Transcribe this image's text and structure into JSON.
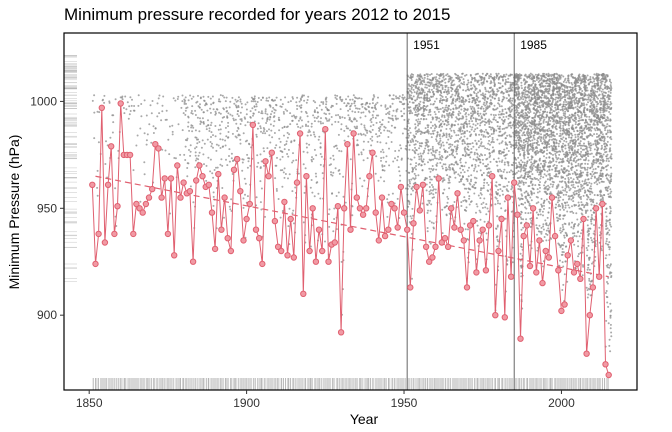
{
  "chart_data": {
    "type": "scatter",
    "title": "Minimum pressure recorded for years 2012 to 2015",
    "xlabel": "Year",
    "ylabel": "Minimum Pressure (hPa)",
    "xlim": [
      1842,
      2024
    ],
    "ylim": [
      865,
      1032
    ],
    "x_ticks": [
      1850,
      1900,
      1950,
      2000
    ],
    "y_ticks": [
      900,
      950,
      1000
    ],
    "grid": false,
    "legend": "none",
    "colors": {
      "annual_min": "#e06070",
      "annual_min_fill": "#f19aa4",
      "trend": "#e06070",
      "observations": "#8c8c8c",
      "rug": "#999999",
      "vlines": "#666666"
    },
    "annotations": [
      {
        "x": 1951,
        "label": "1951"
      },
      {
        "x": 1985,
        "label": "1985"
      }
    ],
    "trend": {
      "x": [
        1852,
        2015
      ],
      "y": [
        965,
        918
      ]
    },
    "series": [
      {
        "kind": "annual_minimum",
        "x": [
          1851,
          1852,
          1853,
          1854,
          1855,
          1856,
          1857,
          1858,
          1859,
          1860,
          1861,
          1862,
          1863,
          1864,
          1865,
          1866,
          1867,
          1868,
          1869,
          1870,
          1871,
          1872,
          1873,
          1874,
          1875,
          1876,
          1877,
          1878,
          1879,
          1880,
          1881,
          1882,
          1883,
          1884,
          1885,
          1886,
          1887,
          1888,
          1889,
          1890,
          1891,
          1892,
          1893,
          1894,
          1895,
          1896,
          1897,
          1898,
          1899,
          1900,
          1901,
          1902,
          1903,
          1904,
          1905,
          1906,
          1907,
          1908,
          1909,
          1910,
          1911,
          1912,
          1913,
          1914,
          1915,
          1916,
          1917,
          1918,
          1919,
          1920,
          1921,
          1922,
          1923,
          1924,
          1925,
          1926,
          1927,
          1928,
          1929,
          1930,
          1931,
          1932,
          1933,
          1934,
          1935,
          1936,
          1937,
          1938,
          1939,
          1940,
          1941,
          1942,
          1943,
          1944,
          1945,
          1946,
          1947,
          1948,
          1949,
          1950,
          1951,
          1952,
          1953,
          1954,
          1955,
          1956,
          1957,
          1958,
          1959,
          1960,
          1961,
          1962,
          1963,
          1964,
          1965,
          1966,
          1967,
          1968,
          1969,
          1970,
          1971,
          1972,
          1973,
          1974,
          1975,
          1976,
          1977,
          1978,
          1979,
          1980,
          1981,
          1982,
          1983,
          1984,
          1985,
          1986,
          1987,
          1988,
          1989,
          1990,
          1991,
          1992,
          1993,
          1994,
          1995,
          1996,
          1997,
          1998,
          1999,
          2000,
          2001,
          2002,
          2003,
          2004,
          2005,
          2006,
          2007,
          2008,
          2009,
          2010,
          2011,
          2012,
          2013,
          2014,
          2015
        ],
        "y": [
          961,
          924,
          938,
          997,
          934,
          961,
          979,
          938,
          951,
          999,
          975,
          975,
          975,
          938,
          952,
          950,
          948,
          952,
          955,
          959,
          980,
          978,
          955,
          964,
          938,
          964,
          928,
          970,
          955,
          962,
          957,
          958,
          925,
          963,
          970,
          965,
          960,
          961,
          948,
          931,
          966,
          940,
          955,
          936,
          930,
          968,
          973,
          958,
          935,
          945,
          952,
          989,
          940,
          936,
          924,
          972,
          965,
          976,
          944,
          932,
          930,
          953,
          928,
          945,
          927,
          962,
          985,
          910,
          965,
          930,
          950,
          925,
          940,
          930,
          987,
          925,
          933,
          934,
          951,
          892,
          950,
          980,
          940,
          985,
          955,
          950,
          947,
          950,
          965,
          976,
          948,
          935,
          955,
          937,
          940,
          952,
          950,
          941,
          960,
          948,
          940,
          913,
          943,
          960,
          949,
          961,
          932,
          925,
          927,
          932,
          964,
          934,
          936,
          932,
          950,
          941,
          957,
          940,
          935,
          913,
          942,
          944,
          920,
          935,
          940,
          921,
          942,
          965,
          900,
          930,
          945,
          899,
          955,
          918,
          962,
          947,
          889,
          937,
          942,
          923,
          950,
          920,
          935,
          915,
          930,
          927,
          955,
          937,
          921,
          902,
          905,
          928,
          935,
          920,
          924,
          917,
          945,
          882,
          900,
          913,
          950,
          918,
          952,
          877,
          872
        ]
      }
    ],
    "vlines": [
      1951,
      1985
    ]
  }
}
